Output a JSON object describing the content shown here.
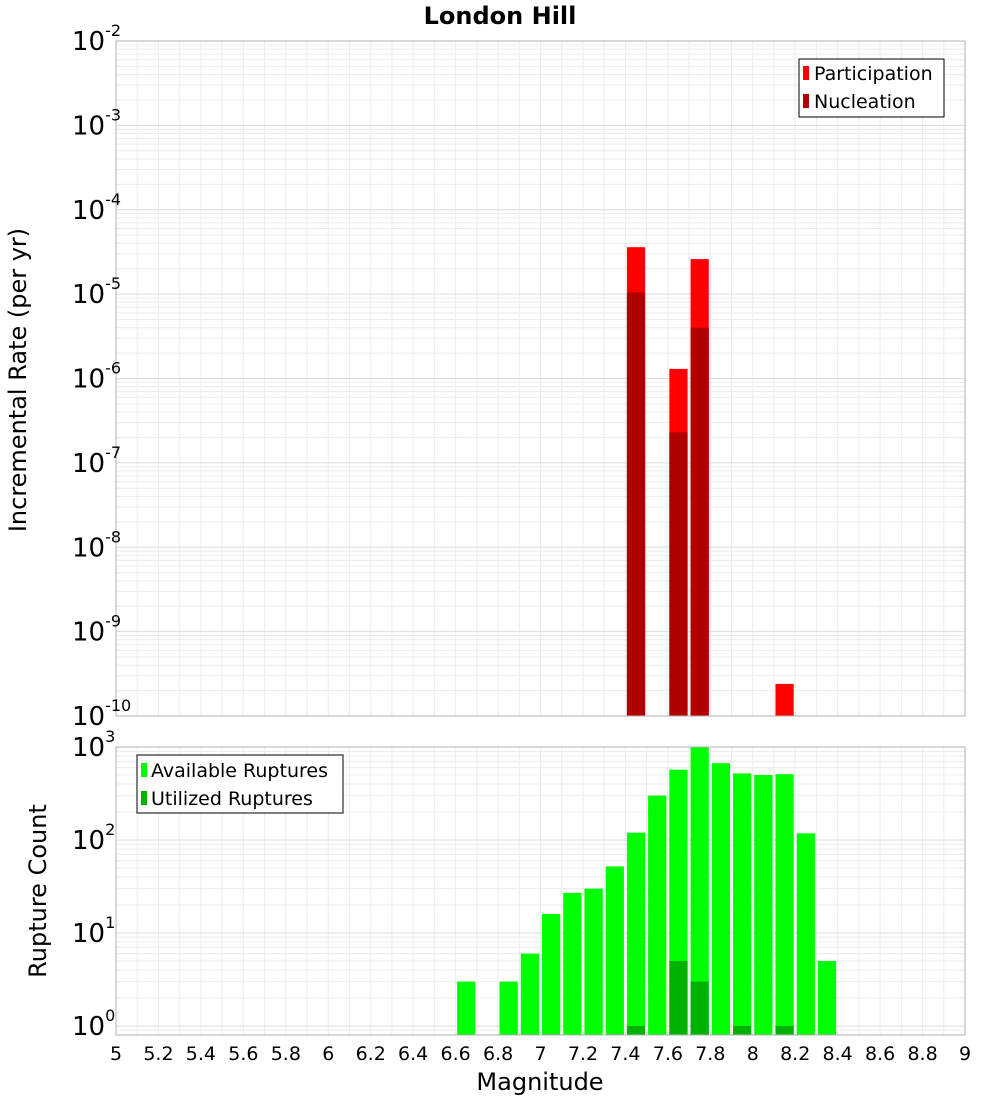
{
  "chart_data": [
    {
      "type": "bar",
      "panel": "top",
      "title": "London Hill",
      "ylabel": "Incremental Rate (per yr)",
      "xlabel": "",
      "yscale": "log",
      "ylim": [
        1e-10,
        0.01
      ],
      "xlim": [
        5,
        9
      ],
      "bin_width": 0.1,
      "legend_position": "top-right",
      "colors": {
        "Participation": "#ff0000",
        "Nucleation": "#b20000"
      },
      "series": [
        {
          "name": "Participation",
          "x": [
            7.45,
            7.65,
            7.75,
            8.15
          ],
          "values": [
            3.6e-05,
            1.3e-06,
            2.6e-05,
            2.4e-10
          ]
        },
        {
          "name": "Nucleation",
          "x": [
            7.45,
            7.65,
            7.75
          ],
          "values": [
            1.05e-05,
            2.3e-07,
            4e-06
          ]
        }
      ],
      "yticks": [
        {
          "base": "10",
          "exp": "-2"
        },
        {
          "base": "10",
          "exp": "-3"
        },
        {
          "base": "10",
          "exp": "-4"
        },
        {
          "base": "10",
          "exp": "-5"
        },
        {
          "base": "10",
          "exp": "-6"
        },
        {
          "base": "10",
          "exp": "-7"
        },
        {
          "base": "10",
          "exp": "-8"
        },
        {
          "base": "10",
          "exp": "-9"
        },
        {
          "base": "10",
          "exp": "-10"
        }
      ],
      "grid": true
    },
    {
      "type": "bar",
      "panel": "bottom",
      "title": "",
      "ylabel": "Rupture Count",
      "xlabel": "Magnitude",
      "yscale": "log",
      "ylim": [
        0.8,
        1000
      ],
      "xlim": [
        5,
        9
      ],
      "bin_width": 0.1,
      "legend_position": "top-left",
      "colors": {
        "Available Ruptures": "#00ff00",
        "Utilized Ruptures": "#00b200"
      },
      "series": [
        {
          "name": "Available Ruptures",
          "x": [
            6.65,
            6.85,
            6.95,
            7.05,
            7.15,
            7.25,
            7.35,
            7.45,
            7.55,
            7.65,
            7.75,
            7.85,
            7.95,
            8.05,
            8.15,
            8.25,
            8.35
          ],
          "values": [
            3,
            3,
            6,
            16,
            27,
            30,
            52,
            120,
            300,
            570,
            1000,
            670,
            520,
            500,
            510,
            118,
            5
          ]
        },
        {
          "name": "Utilized Ruptures",
          "x": [
            7.45,
            7.65,
            7.75,
            7.95,
            8.15
          ],
          "values": [
            1,
            5,
            3,
            1,
            1
          ]
        }
      ],
      "yticks": [
        {
          "base": "10",
          "exp": "3"
        },
        {
          "base": "10",
          "exp": "2"
        },
        {
          "base": "10",
          "exp": "1"
        },
        {
          "base": "10",
          "exp": "0"
        }
      ],
      "xticks": [
        "5",
        "5.2",
        "5.4",
        "5.6",
        "5.8",
        "6",
        "6.2",
        "6.4",
        "6.6",
        "6.8",
        "7",
        "7.2",
        "7.4",
        "7.6",
        "7.8",
        "8",
        "8.2",
        "8.4",
        "8.6",
        "8.8",
        "9"
      ],
      "grid": true
    }
  ]
}
